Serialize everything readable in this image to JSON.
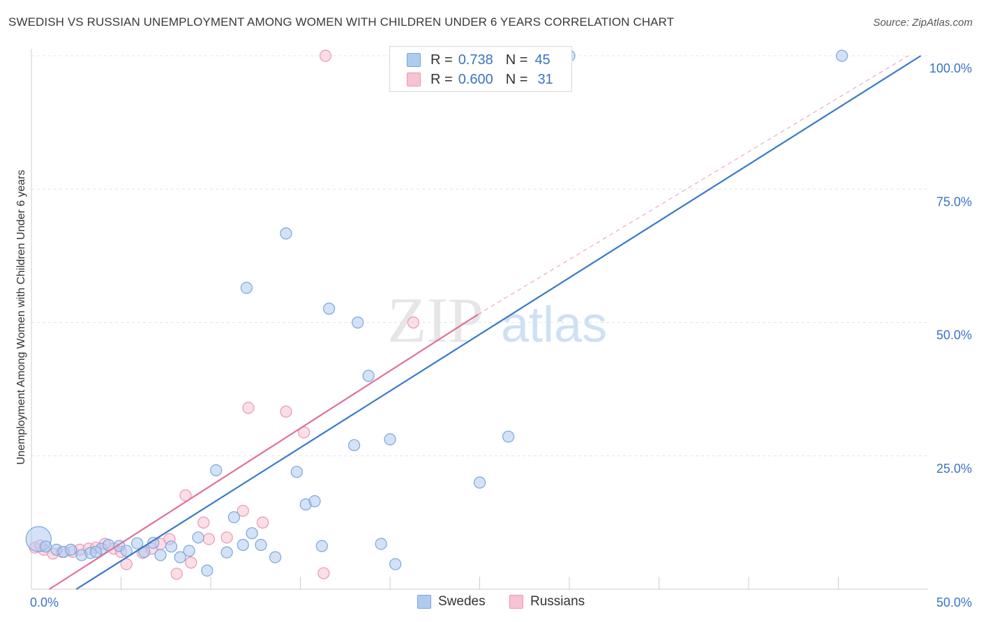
{
  "title": "SWEDISH VS RUSSIAN UNEMPLOYMENT AMONG WOMEN WITH CHILDREN UNDER 6 YEARS CORRELATION CHART",
  "source": "Source: ZipAtlas.com",
  "watermark": {
    "zip": "ZIP",
    "atlas": "atlas"
  },
  "colors": {
    "swedes_fill": "#aecbf0",
    "swedes_stroke": "#7aa6dd",
    "swedes_line": "#3a78c9",
    "russians_fill": "#f7c2d2",
    "russians_stroke": "#eb98b3",
    "russians_line": "#e0709a",
    "value_text": "#3a73c4",
    "grid": "#e4e4e4"
  },
  "stats": {
    "swedes": {
      "r_label": "R =",
      "r_value": "0.738",
      "n_label": "N =",
      "n_value": "45"
    },
    "russians": {
      "r_label": "R =",
      "r_value": "0.600",
      "n_label": "N =",
      "n_value": "31"
    }
  },
  "chart_data": {
    "type": "scatter",
    "title": "SWEDISH VS RUSSIAN UNEMPLOYMENT AMONG WOMEN WITH CHILDREN UNDER 6 YEARS CORRELATION CHART",
    "xlabel": "",
    "ylabel": "Unemployment Among Women with Children Under 6 years",
    "xlim": [
      0,
      50
    ],
    "ylim": [
      0,
      100
    ],
    "x_tick_labels": {
      "left": "0.0%",
      "right": "50.0%"
    },
    "y_ticks": [
      {
        "value": 25,
        "label": "25.0%"
      },
      {
        "value": 50,
        "label": "50.0%"
      },
      {
        "value": 75,
        "label": "75.0%"
      },
      {
        "value": 100,
        "label": "100.0%"
      }
    ],
    "x_minor_ticks": [
      5,
      10,
      15,
      20,
      25,
      30,
      35,
      40,
      45
    ],
    "legend": [
      "Swedes",
      "Russians"
    ],
    "series": [
      {
        "name": "Swedes",
        "r": 0.738,
        "n": 45,
        "trend": {
          "x0": 2.5,
          "y0": 0,
          "x1": 49.6,
          "y1": 100,
          "style": "solid"
        },
        "points": [
          {
            "x": 0.4,
            "y": 9.4,
            "big": true
          },
          {
            "x": 0.8,
            "y": 8.0
          },
          {
            "x": 1.4,
            "y": 7.4
          },
          {
            "x": 1.8,
            "y": 7.0
          },
          {
            "x": 2.2,
            "y": 7.4
          },
          {
            "x": 2.8,
            "y": 6.4
          },
          {
            "x": 3.3,
            "y": 6.8
          },
          {
            "x": 3.9,
            "y": 7.6
          },
          {
            "x": 4.3,
            "y": 8.3
          },
          {
            "x": 4.9,
            "y": 8.1
          },
          {
            "x": 5.3,
            "y": 7.2
          },
          {
            "x": 5.9,
            "y": 8.6
          },
          {
            "x": 6.3,
            "y": 7.0
          },
          {
            "x": 6.8,
            "y": 8.7
          },
          {
            "x": 7.2,
            "y": 6.4
          },
          {
            "x": 7.8,
            "y": 8.0
          },
          {
            "x": 8.3,
            "y": 6.0
          },
          {
            "x": 8.8,
            "y": 7.2
          },
          {
            "x": 9.3,
            "y": 9.7
          },
          {
            "x": 9.8,
            "y": 3.5
          },
          {
            "x": 10.3,
            "y": 22.3
          },
          {
            "x": 10.9,
            "y": 6.9
          },
          {
            "x": 11.3,
            "y": 13.5
          },
          {
            "x": 11.8,
            "y": 8.3
          },
          {
            "x": 12.3,
            "y": 10.5
          },
          {
            "x": 12.0,
            "y": 56.5
          },
          {
            "x": 12.8,
            "y": 8.3
          },
          {
            "x": 13.6,
            "y": 6.0
          },
          {
            "x": 14.2,
            "y": 66.7
          },
          {
            "x": 14.8,
            "y": 22.0
          },
          {
            "x": 15.3,
            "y": 15.9
          },
          {
            "x": 15.8,
            "y": 16.5
          },
          {
            "x": 16.2,
            "y": 8.1
          },
          {
            "x": 16.6,
            "y": 52.6
          },
          {
            "x": 18.0,
            "y": 27.0
          },
          {
            "x": 18.2,
            "y": 50.0
          },
          {
            "x": 18.8,
            "y": 40.0
          },
          {
            "x": 19.5,
            "y": 8.5
          },
          {
            "x": 20.3,
            "y": 4.7
          },
          {
            "x": 20.0,
            "y": 28.1
          },
          {
            "x": 25.0,
            "y": 20.0
          },
          {
            "x": 26.6,
            "y": 28.6
          },
          {
            "x": 30.0,
            "y": 100.0
          },
          {
            "x": 45.2,
            "y": 100.0
          },
          {
            "x": 3.6,
            "y": 7.0
          }
        ]
      },
      {
        "name": "Russians",
        "r": 0.6,
        "n": 31,
        "trend": {
          "x0": 1.0,
          "y0": 0,
          "x1": 24.9,
          "y1": 51.5,
          "style": "solid"
        },
        "trend_extension": {
          "x0": 24.9,
          "y0": 51.5,
          "x1": 48.9,
          "y1": 100,
          "style": "dashed"
        },
        "points": [
          {
            "x": 0.2,
            "y": 7.8
          },
          {
            "x": 0.7,
            "y": 7.4
          },
          {
            "x": 1.2,
            "y": 6.7
          },
          {
            "x": 1.7,
            "y": 7.0
          },
          {
            "x": 2.3,
            "y": 7.0
          },
          {
            "x": 2.7,
            "y": 7.4
          },
          {
            "x": 3.2,
            "y": 7.6
          },
          {
            "x": 3.6,
            "y": 7.8
          },
          {
            "x": 4.1,
            "y": 8.5
          },
          {
            "x": 4.6,
            "y": 7.6
          },
          {
            "x": 5.0,
            "y": 7.0
          },
          {
            "x": 5.3,
            "y": 4.7
          },
          {
            "x": 6.2,
            "y": 6.8
          },
          {
            "x": 6.7,
            "y": 7.6
          },
          {
            "x": 7.2,
            "y": 8.5
          },
          {
            "x": 7.7,
            "y": 9.4
          },
          {
            "x": 8.1,
            "y": 2.9
          },
          {
            "x": 8.6,
            "y": 17.6
          },
          {
            "x": 8.9,
            "y": 5.0
          },
          {
            "x": 9.6,
            "y": 12.5
          },
          {
            "x": 9.9,
            "y": 9.4
          },
          {
            "x": 10.9,
            "y": 9.7
          },
          {
            "x": 11.8,
            "y": 14.7
          },
          {
            "x": 12.1,
            "y": 34.0
          },
          {
            "x": 12.9,
            "y": 12.5
          },
          {
            "x": 14.2,
            "y": 33.3
          },
          {
            "x": 15.2,
            "y": 29.4
          },
          {
            "x": 16.3,
            "y": 3.0
          },
          {
            "x": 16.4,
            "y": 100.0
          },
          {
            "x": 21.3,
            "y": 50.0
          },
          {
            "x": 0.5,
            "y": 8.2
          }
        ]
      }
    ]
  }
}
